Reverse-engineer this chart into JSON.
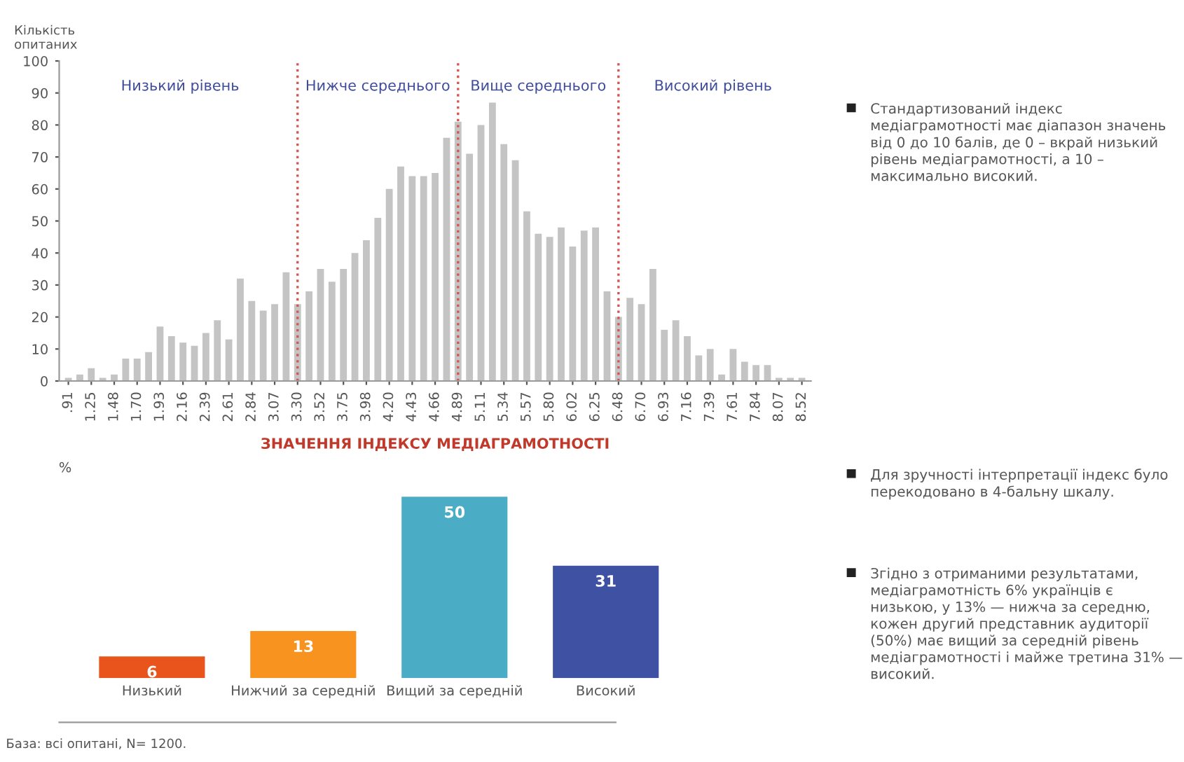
{
  "chart_data": [
    {
      "type": "bar",
      "categories": [
        ".91",
        null,
        "1.25",
        null,
        "1.48",
        null,
        "1.70",
        null,
        "1.93",
        null,
        "2.16",
        null,
        "2.39",
        null,
        "2.61",
        null,
        "2.84",
        null,
        "3.07",
        null,
        "3.30",
        null,
        "3.52",
        null,
        "3.75",
        null,
        "3.98",
        null,
        "4.20",
        null,
        "4.43",
        null,
        "4.66",
        null,
        "4.89",
        null,
        "5.11",
        null,
        "5.34",
        null,
        "5.57",
        null,
        "5.80",
        null,
        "6.02",
        null,
        "6.25",
        null,
        "6.48",
        null,
        "6.70",
        null,
        "6.93",
        null,
        "7.16",
        null,
        "7.39",
        null,
        "7.61",
        null,
        "7.84",
        null,
        "8.07",
        null,
        "8.52"
      ],
      "values": [
        1,
        2,
        4,
        1,
        2,
        7,
        7,
        9,
        17,
        14,
        12,
        11,
        15,
        19,
        13,
        32,
        25,
        22,
        24,
        34,
        24,
        28,
        35,
        31,
        35,
        40,
        44,
        51,
        60,
        67,
        64,
        64,
        65,
        76,
        81,
        71,
        80,
        87,
        74,
        69,
        53,
        46,
        45,
        48,
        42,
        47,
        48,
        28,
        20,
        26,
        24,
        35,
        16,
        19,
        14,
        8,
        10,
        2,
        10,
        6,
        5,
        5,
        1,
        1,
        1
      ],
      "color": "#c4c4c4",
      "ylabel": "Кількість\nопитаних",
      "xlabel": "ЗНАЧЕННЯ ІНДЕКСУ МЕДІАГРАМОТНОСТІ",
      "ylim": [
        0,
        100
      ],
      "yticks": [
        0,
        10,
        20,
        30,
        40,
        50,
        60,
        70,
        80,
        90,
        100
      ],
      "grid": false,
      "ref_lines": [
        {
          "axis": "x",
          "value": "3.30",
          "color": "#d9534f",
          "line_style": "dotted"
        },
        {
          "axis": "x",
          "value": "4.89",
          "color": "#d9534f",
          "line_style": "dotted"
        },
        {
          "axis": "x",
          "value": "6.48",
          "color": "#d9534f",
          "line_style": "dotted"
        }
      ],
      "annotations": [
        "Низький рівень",
        "Нижче середнього",
        "Вище середнього",
        "Високий рівень",
        "Стандартизований індекс медіаграмотності має діапазон значень від 0 до 10 балів, де 0 – вкрай низький рівень медіаграмотності, а 10 – максимально високий."
      ]
    },
    {
      "type": "bar",
      "categories": [
        "Низький",
        "Нижчий за середній",
        "Вищий за середній",
        "Високий"
      ],
      "values": [
        6,
        13,
        50,
        31
      ],
      "colors": [
        "#e8541c",
        "#f7931e",
        "#4bacc6",
        "#3f51a3"
      ],
      "ylabel": "%",
      "data_labels": true,
      "grid": false,
      "annotations": [
        "Для зручності інтерпретації індекс було перекодовано в 4-бальну шкалу.",
        "Згідно з отриманими результатами, медіаграмотність 6% українців є низькою, у 13% — нижча за середню, кожен другий представник аудиторії (50%) має вищий за середній рівень медіаграмотності і майже третина 31% — високий.",
        "База: всі опитані, N= 1200."
      ]
    }
  ]
}
